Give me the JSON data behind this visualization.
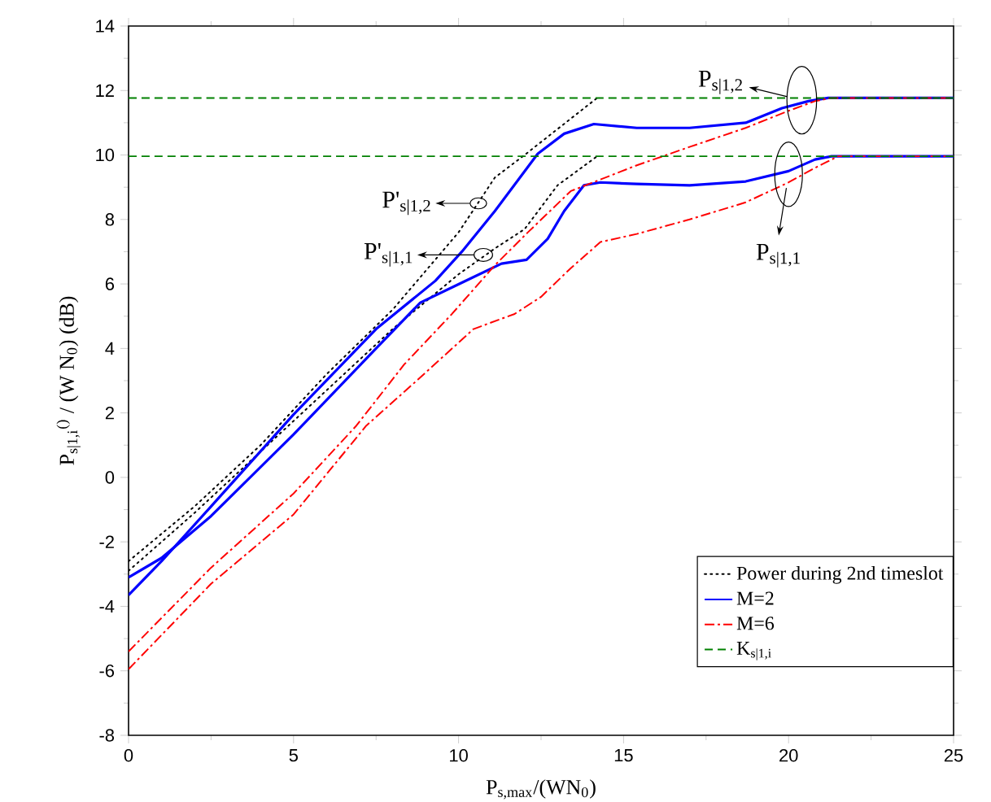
{
  "chart_data": {
    "type": "line",
    "xlabel": "P$_{s,max}$/(WN$_{0}$)",
    "ylabel": "P$_{s|1,i}$$^{()}$ / (W N$_{0}$) (dB)",
    "xlim": [
      0,
      25
    ],
    "ylim": [
      -8,
      14
    ],
    "xticks": [
      0,
      5,
      10,
      15,
      20,
      25
    ],
    "yticks": [
      -8,
      -6,
      -4,
      -2,
      0,
      2,
      4,
      6,
      8,
      10,
      12,
      14
    ],
    "legend": "bottom right",
    "series": [
      {
        "name": "Power during 2nd timeslot",
        "color": "#000000",
        "line_style": "dotted",
        "x": [
          0,
          2,
          4,
          6,
          8,
          10,
          11.1,
          12,
          14.2
        ],
        "values": [
          -2.6,
          -0.9,
          1.0,
          3.2,
          5.2,
          7.6,
          9.3,
          10.0,
          11.77
        ]
      },
      {
        "color": "#000000",
        "line_style": "dotted",
        "x": [
          0,
          2,
          4,
          6,
          8,
          10,
          11.1,
          12,
          13,
          14.2
        ],
        "values": [
          -2.9,
          -1.1,
          0.8,
          2.7,
          4.6,
          6.3,
          7.1,
          7.7,
          9.06,
          9.96
        ]
      },
      {
        "name": "M=2",
        "color": "#0000ff",
        "line_style": "solid",
        "x": [
          0,
          1,
          2.5,
          5,
          7.5,
          9.3,
          10.1,
          11.1,
          12.4,
          13.2,
          14.1,
          15.4,
          17,
          18.7,
          19.8,
          20.6,
          21.2,
          25
        ],
        "values": [
          -3.65,
          -2.6,
          -0.9,
          1.95,
          4.6,
          6.1,
          7.0,
          8.26,
          10.04,
          10.66,
          10.96,
          10.84,
          10.84,
          11.0,
          11.45,
          11.67,
          11.77,
          11.77
        ]
      },
      {
        "color": "#0000ff",
        "line_style": "solid",
        "x": [
          0,
          1,
          2.5,
          5,
          7.5,
          8.84,
          10.1,
          11.3,
          12.06,
          12.7,
          13.2,
          13.8,
          14.3,
          15.4,
          17,
          18.7,
          20,
          20.8,
          21.3,
          25
        ],
        "values": [
          -3.1,
          -2.5,
          -1.2,
          1.33,
          4.0,
          5.42,
          6.04,
          6.63,
          6.75,
          7.4,
          8.26,
          9.06,
          9.15,
          9.1,
          9.06,
          9.18,
          9.5,
          9.86,
          9.96,
          9.96
        ]
      },
      {
        "name": "M=6",
        "color": "#ff0000",
        "line_style": "dashdot",
        "x": [
          0,
          2.5,
          5,
          6.9,
          8.35,
          9.8,
          11.1,
          12.1,
          13.4,
          14.3,
          15.4,
          17,
          18.7,
          20,
          20.8,
          21.3,
          25
        ],
        "values": [
          -5.4,
          -2.8,
          -0.5,
          1.6,
          3.5,
          5.07,
          6.58,
          7.6,
          8.88,
          9.24,
          9.68,
          10.25,
          10.84,
          11.37,
          11.67,
          11.77,
          11.77
        ]
      },
      {
        "color": "#ff0000",
        "line_style": "dashdot",
        "x": [
          0,
          2.5,
          5,
          7.2,
          8.84,
          10.45,
          11.7,
          12.5,
          13.4,
          14.3,
          15.4,
          17,
          18.7,
          20,
          20.8,
          21.5,
          25
        ],
        "values": [
          -5.95,
          -3.3,
          -1.15,
          1.6,
          3.1,
          4.6,
          5.07,
          5.6,
          6.49,
          7.3,
          7.55,
          8.0,
          8.53,
          9.15,
          9.6,
          9.96,
          9.96
        ]
      },
      {
        "name": "K$_{s|1,i}$",
        "color": "#008000",
        "line_style": "dashed",
        "x": [
          0,
          25
        ],
        "values": [
          11.77,
          11.77
        ]
      },
      {
        "color": "#008000",
        "line_style": "dashed",
        "x": [
          0,
          25
        ],
        "values": [
          9.96,
          9.96
        ]
      }
    ],
    "annotations": [
      {
        "text": "P'$_{s|1,2}$",
        "x": 10.6,
        "y": 8.5
      },
      {
        "text": "P'$_{s|1,1}$",
        "x": 10.75,
        "y": 6.9
      },
      {
        "text": "P$_{s|1,2}$",
        "x": 20.4,
        "y": 11.7
      },
      {
        "text": "P$_{s|1,1}$",
        "x": 20.0,
        "y": 9.4
      }
    ]
  }
}
